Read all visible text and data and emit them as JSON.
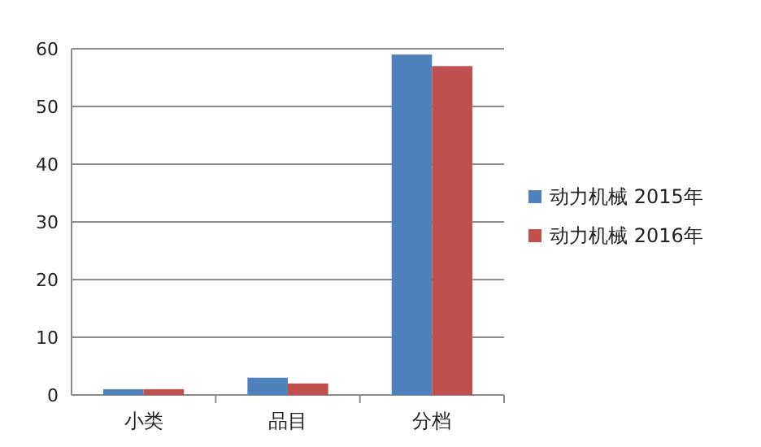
{
  "chart_data": {
    "type": "bar",
    "categories": [
      "小类",
      "品目",
      "分档"
    ],
    "series": [
      {
        "name": "动力机械 2015年",
        "color": "#4f81bd",
        "values": [
          1,
          3,
          59
        ]
      },
      {
        "name": "动力机械 2016年",
        "color": "#c0504d",
        "values": [
          1,
          2,
          57
        ]
      }
    ],
    "ylim": [
      0,
      60
    ],
    "yticks": [
      0,
      10,
      20,
      30,
      40,
      50,
      60
    ],
    "grid": "y",
    "legend": "right"
  }
}
